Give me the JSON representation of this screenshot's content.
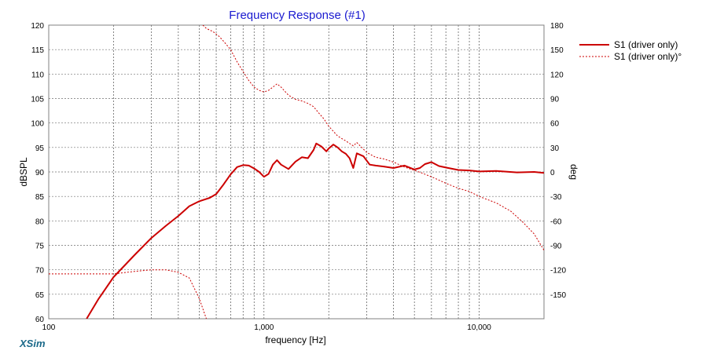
{
  "chart_data": {
    "type": "line",
    "title": "Frequency Response (#1)",
    "xlabel": "frequency [Hz]",
    "ylabel": "dBSPL",
    "y2label": "deg",
    "x_scale": "log",
    "xlim": [
      100,
      20000
    ],
    "ylim": [
      60,
      120
    ],
    "y2lim": [
      -180,
      180
    ],
    "x_tick_labels": [
      {
        "value": 100,
        "label": "100"
      },
      {
        "value": 1000,
        "label": "1,000"
      },
      {
        "value": 10000,
        "label": "10,000"
      }
    ],
    "y_ticks": [
      60,
      65,
      70,
      75,
      80,
      85,
      90,
      95,
      100,
      105,
      110,
      115,
      120
    ],
    "y2_ticks": [
      -150,
      -120,
      -90,
      -60,
      -30,
      0,
      30,
      60,
      90,
      120,
      150,
      180
    ],
    "grid": true,
    "legend_position": "top-right",
    "series": [
      {
        "name": "S1 (driver only)",
        "axis": "left",
        "style": "solid",
        "color": "#cc0000",
        "points": [
          [
            150,
            60
          ],
          [
            170,
            64
          ],
          [
            200,
            68.5
          ],
          [
            250,
            73
          ],
          [
            300,
            76.5
          ],
          [
            350,
            79
          ],
          [
            400,
            81
          ],
          [
            450,
            83
          ],
          [
            500,
            84
          ],
          [
            560,
            84.7
          ],
          [
            600,
            85.5
          ],
          [
            650,
            87.5
          ],
          [
            700,
            89.5
          ],
          [
            750,
            91
          ],
          [
            800,
            91.4
          ],
          [
            850,
            91.3
          ],
          [
            900,
            90.7
          ],
          [
            950,
            90
          ],
          [
            1000,
            89
          ],
          [
            1050,
            89.6
          ],
          [
            1100,
            91.5
          ],
          [
            1150,
            92.4
          ],
          [
            1200,
            91.5
          ],
          [
            1300,
            90.6
          ],
          [
            1400,
            92.1
          ],
          [
            1500,
            93
          ],
          [
            1600,
            92.8
          ],
          [
            1700,
            94.5
          ],
          [
            1750,
            95.8
          ],
          [
            1850,
            95.2
          ],
          [
            1950,
            94.2
          ],
          [
            2000,
            94.8
          ],
          [
            2100,
            95.6
          ],
          [
            2200,
            95
          ],
          [
            2300,
            94.2
          ],
          [
            2400,
            93.7
          ],
          [
            2500,
            92.8
          ],
          [
            2600,
            90.8
          ],
          [
            2700,
            93.8
          ],
          [
            2900,
            93.2
          ],
          [
            3100,
            91.5
          ],
          [
            3300,
            91.3
          ],
          [
            3600,
            91.1
          ],
          [
            4000,
            90.8
          ],
          [
            4500,
            91.3
          ],
          [
            5000,
            90.5
          ],
          [
            5300,
            90.8
          ],
          [
            5600,
            91.6
          ],
          [
            6000,
            92
          ],
          [
            6500,
            91.2
          ],
          [
            7000,
            90.9
          ],
          [
            8000,
            90.4
          ],
          [
            9000,
            90.3
          ],
          [
            10000,
            90.1
          ],
          [
            12000,
            90.2
          ],
          [
            15000,
            89.9
          ],
          [
            18000,
            90
          ],
          [
            20000,
            89.8
          ]
        ]
      },
      {
        "name": "S1 (driver only)°",
        "axis": "right",
        "style": "dashed",
        "color": "#cc0000",
        "segments": [
          [
            [
              100,
              -125
            ],
            [
              150,
              -125
            ],
            [
              200,
              -125
            ],
            [
              250,
              -122
            ],
            [
              300,
              -120
            ],
            [
              350,
              -120
            ],
            [
              400,
              -123
            ],
            [
              450,
              -130
            ],
            [
              500,
              -155
            ],
            [
              540,
              -180
            ]
          ],
          [
            [
              520,
              180
            ],
            [
              540,
              176
            ],
            [
              580,
              172
            ],
            [
              620,
              166
            ],
            [
              650,
              160
            ],
            [
              700,
              150
            ],
            [
              750,
              135
            ],
            [
              800,
              123
            ],
            [
              850,
              112
            ],
            [
              900,
              104
            ],
            [
              950,
              100
            ],
            [
              1000,
              98
            ],
            [
              1050,
              100
            ],
            [
              1100,
              104
            ],
            [
              1150,
              108
            ],
            [
              1200,
              104
            ],
            [
              1300,
              94
            ],
            [
              1400,
              89
            ],
            [
              1500,
              87
            ],
            [
              1600,
              84
            ],
            [
              1700,
              80
            ],
            [
              1800,
              72
            ],
            [
              1900,
              65
            ],
            [
              2000,
              56
            ],
            [
              2200,
              44
            ],
            [
              2400,
              38
            ],
            [
              2600,
              32
            ],
            [
              2700,
              36
            ],
            [
              2800,
              32
            ],
            [
              3000,
              24
            ],
            [
              3300,
              18
            ],
            [
              3600,
              16
            ],
            [
              4000,
              12
            ],
            [
              4500,
              6
            ],
            [
              5000,
              2
            ],
            [
              5500,
              -2
            ],
            [
              6000,
              -6
            ],
            [
              6500,
              -10
            ],
            [
              7000,
              -14
            ],
            [
              8000,
              -20
            ],
            [
              9000,
              -24
            ],
            [
              10000,
              -30
            ],
            [
              12000,
              -38
            ],
            [
              14000,
              -48
            ],
            [
              16000,
              -62
            ],
            [
              18000,
              -76
            ],
            [
              20000,
              -96
            ]
          ]
        ]
      }
    ]
  },
  "brand_label": "XSim"
}
